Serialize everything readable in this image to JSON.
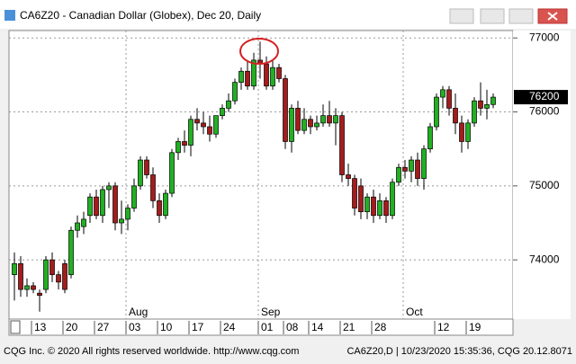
{
  "chart_data": {
    "type": "candlestick",
    "title": "CA6Z20 - Canadian Dollar (Globex), Dec 20, Daily",
    "categories": [
      null,
      null,
      null,
      "13",
      null,
      null,
      null,
      null,
      "20",
      null,
      null,
      null,
      null,
      "27",
      null,
      null,
      null,
      null,
      "03",
      null,
      null,
      null,
      null,
      "10",
      null,
      null,
      null,
      null,
      "17",
      null,
      null,
      null,
      null,
      "24",
      null,
      null,
      null,
      null,
      null,
      "01",
      null,
      null,
      null,
      "08",
      null,
      null,
      null,
      "14",
      null,
      null,
      null,
      null,
      "21",
      null,
      null,
      null,
      null,
      "28",
      null,
      null,
      null,
      null,
      null,
      null,
      null,
      null,
      null,
      "12",
      null,
      null,
      null,
      null,
      "19",
      null,
      null,
      null,
      null
    ],
    "month_labels": [
      null,
      null,
      null,
      null,
      null,
      null,
      null,
      null,
      null,
      null,
      null,
      null,
      null,
      null,
      null,
      null,
      null,
      null,
      "Aug",
      null,
      null,
      null,
      null,
      null,
      null,
      null,
      null,
      null,
      null,
      null,
      null,
      null,
      null,
      null,
      null,
      null,
      null,
      null,
      null,
      "Sep",
      null,
      null,
      null,
      null,
      null,
      null,
      null,
      null,
      null,
      null,
      null,
      null,
      null,
      null,
      null,
      null,
      null,
      null,
      null,
      null,
      null,
      null,
      "Oct",
      null,
      null,
      null,
      null,
      null,
      null,
      null,
      null,
      null,
      null,
      null,
      null,
      null,
      null
    ],
    "open": [
      73800,
      73950,
      73600,
      73650,
      73550,
      73600,
      74000,
      73800,
      73950,
      73800,
      74400,
      74450,
      74600,
      74850,
      74600,
      74950,
      75000,
      74500,
      74550,
      74700,
      75000,
      75350,
      75150,
      74800,
      74600,
      74900,
      75450,
      75600,
      75550,
      75900,
      75850,
      75800,
      75700,
      75950,
      76050,
      76150,
      76400,
      76550,
      76350,
      76700,
      76650,
      76350,
      76600,
      76450,
      75600,
      76050,
      75750,
      75900,
      75800,
      75850,
      75950,
      75850,
      75950,
      75150,
      75100,
      75000,
      74650,
      74850,
      74600,
      74800,
      74600,
      75050,
      75250,
      75200,
      75350,
      75100,
      75500,
      75800,
      76200,
      76300,
      76050,
      75850,
      75600,
      75850,
      76150,
      76050,
      76100
    ],
    "high": [
      74100,
      74050,
      73750,
      73700,
      73600,
      74050,
      74100,
      73850,
      74000,
      74450,
      74600,
      74650,
      74900,
      74950,
      75000,
      75050,
      75050,
      74800,
      74750,
      75100,
      75400,
      75400,
      75250,
      74900,
      74950,
      75500,
      75650,
      75750,
      75950,
      76050,
      76000,
      75950,
      75950,
      76100,
      76250,
      76450,
      76600,
      76700,
      76800,
      76950,
      76750,
      76700,
      76650,
      76500,
      76100,
      76150,
      76050,
      75950,
      75950,
      76100,
      76150,
      76050,
      76000,
      75300,
      75150,
      75100,
      74900,
      74950,
      74900,
      74850,
      75100,
      75300,
      75350,
      75400,
      75450,
      75550,
      75850,
      76250,
      76350,
      76350,
      76250,
      75950,
      75900,
      76200,
      76400,
      76300,
      76250
    ],
    "low": [
      73450,
      73500,
      73500,
      73550,
      73300,
      73550,
      73700,
      73600,
      73550,
      73750,
      74300,
      74350,
      74500,
      74550,
      74500,
      74700,
      74400,
      74350,
      74400,
      74650,
      74950,
      75100,
      74700,
      74500,
      74550,
      74850,
      75350,
      75450,
      75400,
      75750,
      75700,
      75600,
      75650,
      75900,
      76000,
      76100,
      76300,
      76300,
      76300,
      76450,
      76300,
      76300,
      76400,
      75500,
      75450,
      75700,
      75700,
      75700,
      75750,
      75800,
      75800,
      75550,
      75050,
      75000,
      74600,
      74550,
      74550,
      74500,
      74550,
      74500,
      74550,
      75000,
      75100,
      75050,
      75000,
      74950,
      75450,
      75750,
      76050,
      75950,
      75700,
      75450,
      75500,
      75800,
      75950,
      75900,
      76050
    ],
    "close": [
      73950,
      73600,
      73650,
      73600,
      73520,
      74000,
      73800,
      73700,
      73600,
      74400,
      74500,
      74550,
      74850,
      74600,
      74950,
      75000,
      74500,
      74550,
      74700,
      75000,
      75350,
      75150,
      74800,
      74600,
      74900,
      75450,
      75600,
      75550,
      75900,
      75850,
      75800,
      75700,
      75950,
      76050,
      76150,
      76400,
      76550,
      76350,
      76700,
      76650,
      76350,
      76600,
      76450,
      75600,
      76050,
      75750,
      75900,
      75800,
      75850,
      75950,
      75850,
      75950,
      75150,
      75100,
      74700,
      74650,
      74850,
      74600,
      74800,
      74600,
      75050,
      75250,
      75200,
      75350,
      75100,
      75500,
      75800,
      76200,
      76300,
      76050,
      75850,
      75600,
      75850,
      76150,
      76050,
      76100,
      76200
    ],
    "up_color": "#22b022",
    "down_color": "#a51c1c",
    "ylim": [
      73200,
      77100
    ],
    "yticks": [
      74000,
      75000,
      76000,
      77000
    ],
    "grid": true
  },
  "footer": {
    "left": "CQG Inc. © 2020 All rights reserved worldwide. http://www.cqg.com",
    "right": "CA6Z20,D | 10/23/2020 15:35:36, CQG 20.12.8071"
  }
}
